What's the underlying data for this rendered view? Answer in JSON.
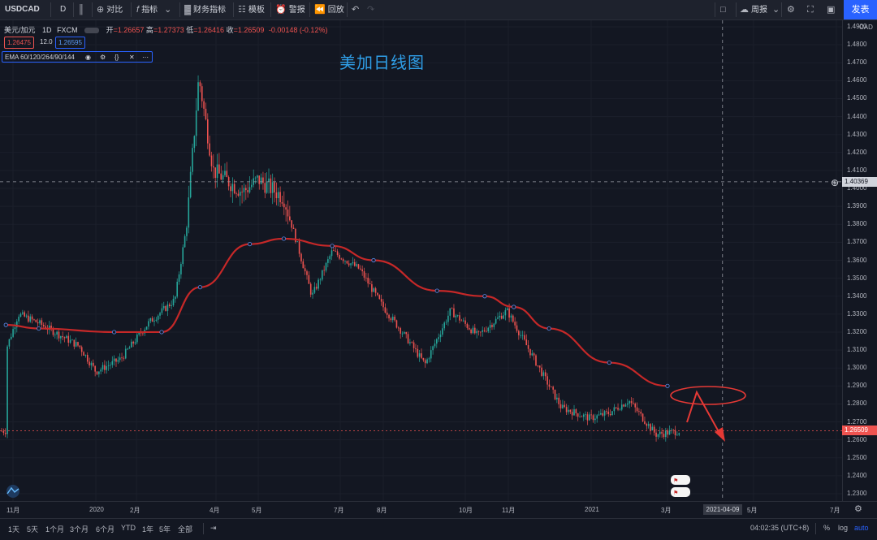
{
  "toolbar": {
    "symbol": "USDCAD",
    "interval": "D",
    "compare": "对比",
    "indicators": "指标",
    "financials": "财务指标",
    "templates": "模板",
    "alert": "警报",
    "replay": "回放",
    "layout_name": "周报",
    "publish": "发表"
  },
  "legend": {
    "name": "美元/加元",
    "interval": "1D",
    "source": "FXCM",
    "open_label": "开",
    "open": "=1.26657",
    "high_label": "高",
    "high": "=1.27373",
    "low_label": "低",
    "low": "=1.26416",
    "close_label": "收",
    "close": "=1.26509",
    "change": "-0.00148 (-0.12%)",
    "bid": "1.26475",
    "spread": "12.0",
    "ask": "1.26595",
    "ema_label": "EMA 60/120/264/90/144"
  },
  "overlay_title": "美加日线图",
  "y_axis": {
    "unit": "CAD",
    "ticks": [
      "1.4900",
      "1.4800",
      "1.4700",
      "1.4600",
      "1.4500",
      "1.4400",
      "1.4300",
      "1.4200",
      "1.4100",
      "1.4000",
      "1.3900",
      "1.3800",
      "1.3700",
      "1.3600",
      "1.3500",
      "1.3400",
      "1.3300",
      "1.3200",
      "1.3100",
      "1.3000",
      "1.2900",
      "1.2800",
      "1.2700",
      "1.2600",
      "1.2500",
      "1.2400",
      "1.2300"
    ],
    "crosshair_price": "1.40369",
    "last_price": "1.26509"
  },
  "x_axis": {
    "ticks": [
      "11月",
      "2020",
      "2月",
      "4月",
      "5月",
      "7月",
      "8月",
      "10月",
      "11月",
      "2021",
      "3月",
      "5月",
      "7月"
    ],
    "crosshair_date": "2021-04-09"
  },
  "bottom_bar": {
    "ranges": [
      "1天",
      "5天",
      "1个月",
      "3个月",
      "6个月",
      "YTD",
      "1年",
      "5年",
      "全部"
    ],
    "clock": "04:02:35 (UTC+8)",
    "percent": "%",
    "log": "log",
    "auto": "auto"
  },
  "colors": {
    "bull": "#26a69a",
    "bear": "#ef5350",
    "ema": "#c62828",
    "annotation": "#e53935",
    "accent": "#2962ff"
  },
  "chart_data": {
    "type": "candlestick",
    "title": "",
    "symbol": "USDCAD",
    "timeframe": "1D",
    "ylim": [
      1.225,
      1.495
    ],
    "x_range": [
      "2019-10",
      "2021-07"
    ],
    "last": {
      "open": 1.26657,
      "high": 1.27373,
      "low": 1.26416,
      "close": 1.26509
    },
    "ema_path": [
      {
        "x": "2019-10-15",
        "y": 1.324
      },
      {
        "x": "2019-11-20",
        "y": 1.322
      },
      {
        "x": "2020-01-15",
        "y": 1.32
      },
      {
        "x": "2020-02-20",
        "y": 1.32
      },
      {
        "x": "2020-03-20",
        "y": 1.345
      },
      {
        "x": "2020-04-25",
        "y": 1.369
      },
      {
        "x": "2020-05-20",
        "y": 1.372
      },
      {
        "x": "2020-06-25",
        "y": 1.368
      },
      {
        "x": "2020-07-25",
        "y": 1.36
      },
      {
        "x": "2020-09-10",
        "y": 1.343
      },
      {
        "x": "2020-10-15",
        "y": 1.34
      },
      {
        "x": "2020-11-05",
        "y": 1.334
      },
      {
        "x": "2020-12-01",
        "y": 1.322
      },
      {
        "x": "2021-01-15",
        "y": 1.303
      },
      {
        "x": "2021-03-01",
        "y": 1.29
      }
    ],
    "price_path": [
      {
        "x": "2019-10-15",
        "y": 1.31
      },
      {
        "x": "2019-11-05",
        "y": 1.33
      },
      {
        "x": "2019-11-20",
        "y": 1.325
      },
      {
        "x": "2019-12-20",
        "y": 1.312
      },
      {
        "x": "2020-01-01",
        "y": 1.298
      },
      {
        "x": "2020-01-20",
        "y": 1.305
      },
      {
        "x": "2020-02-10",
        "y": 1.325
      },
      {
        "x": "2020-03-01",
        "y": 1.338
      },
      {
        "x": "2020-03-10",
        "y": 1.38
      },
      {
        "x": "2020-03-19",
        "y": 1.462
      },
      {
        "x": "2020-03-30",
        "y": 1.41
      },
      {
        "x": "2020-04-20",
        "y": 1.398
      },
      {
        "x": "2020-05-01",
        "y": 1.405
      },
      {
        "x": "2020-05-20",
        "y": 1.395
      },
      {
        "x": "2020-06-10",
        "y": 1.34
      },
      {
        "x": "2020-06-25",
        "y": 1.365
      },
      {
        "x": "2020-07-15",
        "y": 1.355
      },
      {
        "x": "2020-07-31",
        "y": 1.335
      },
      {
        "x": "2020-08-20",
        "y": 1.315
      },
      {
        "x": "2020-09-01",
        "y": 1.302
      },
      {
        "x": "2020-09-20",
        "y": 1.332
      },
      {
        "x": "2020-10-10",
        "y": 1.318
      },
      {
        "x": "2020-10-31",
        "y": 1.332
      },
      {
        "x": "2020-11-20",
        "y": 1.305
      },
      {
        "x": "2020-12-10",
        "y": 1.278
      },
      {
        "x": "2020-12-31",
        "y": 1.272
      },
      {
        "x": "2021-01-15",
        "y": 1.275
      },
      {
        "x": "2021-01-30",
        "y": 1.282
      },
      {
        "x": "2021-02-20",
        "y": 1.263
      },
      {
        "x": "2021-03-10",
        "y": 1.265
      }
    ]
  }
}
